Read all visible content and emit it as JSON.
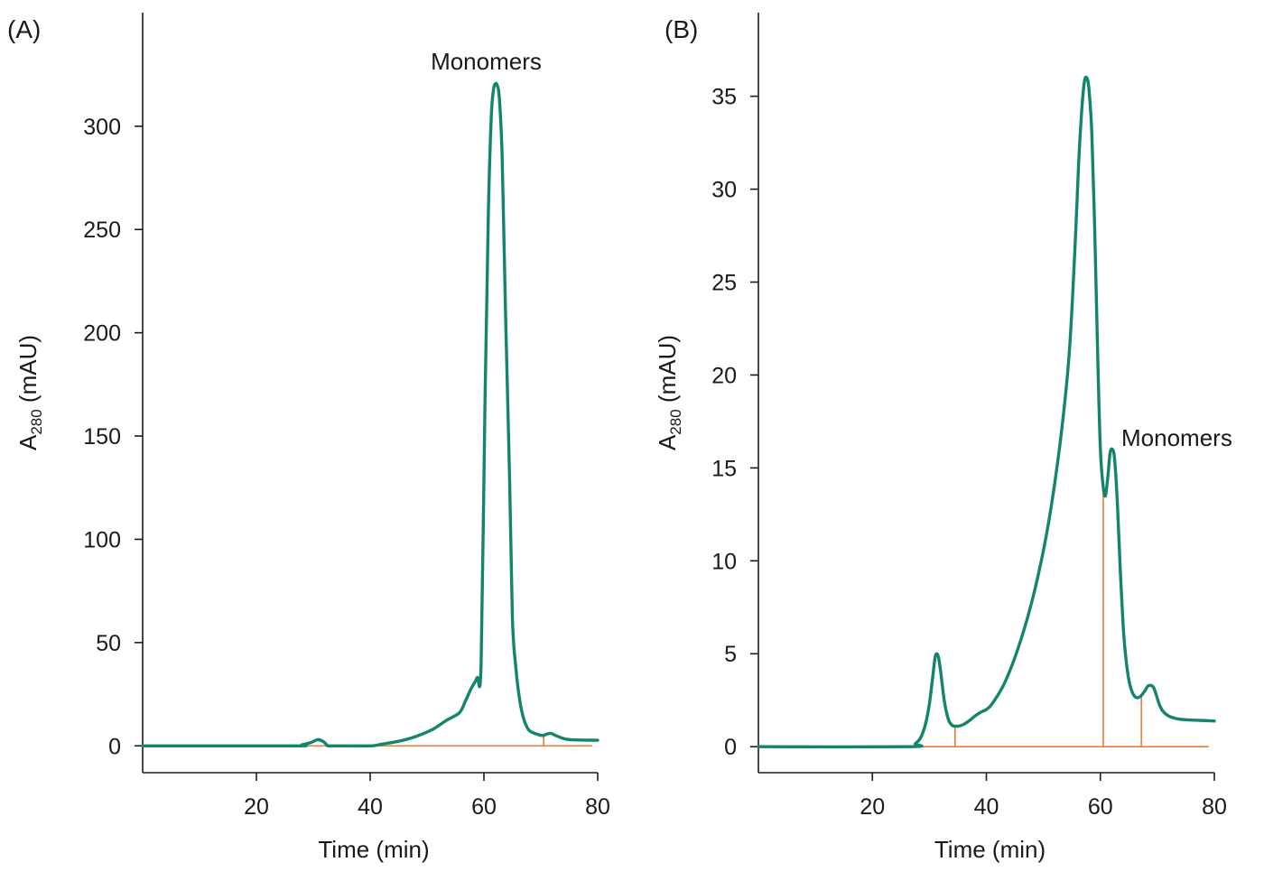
{
  "colors": {
    "trace": "#13856b",
    "baseline": "#ec7a3a",
    "axis": "#1a1a1a"
  },
  "chart_data": [
    {
      "type": "line",
      "panel_label": "(A)",
      "xlabel": "Time (min)",
      "ylabel_main": "A",
      "ylabel_sub": "280",
      "ylabel_unit": " (mAU)",
      "xlim": [
        0,
        80
      ],
      "ylim": [
        -13,
        355
      ],
      "xticks": [
        "20",
        "40",
        "60",
        "80"
      ],
      "xtick_values": [
        20,
        40,
        60,
        80
      ],
      "yticks": [
        "0",
        "50",
        "100",
        "150",
        "200",
        "250",
        "300"
      ],
      "ytick_values": [
        0,
        50,
        100,
        150,
        200,
        250,
        300
      ],
      "series": [
        {
          "name": "A280",
          "x": [
            0,
            26.5,
            28,
            29.5,
            30.8,
            31.8,
            32.5,
            33.2,
            40,
            42,
            45,
            48,
            51,
            53.5,
            55.7,
            56.8,
            57.8,
            58.8,
            59.5,
            60.2,
            60.8,
            61.3,
            61.7,
            62.0,
            62.3,
            62.7,
            63.2,
            63.8,
            64.5,
            65.0,
            65.6,
            66.3,
            67.0,
            67.8,
            68.5,
            69.5,
            70.3,
            71.2,
            71.8,
            72.8,
            74.5,
            77,
            80
          ],
          "y": [
            0,
            0,
            0.5,
            1.5,
            3.0,
            2.0,
            0.2,
            0,
            0,
            0.8,
            2.2,
            4.5,
            8.0,
            12.5,
            16.0,
            22,
            28,
            33,
            40,
            170,
            260,
            305,
            318,
            320.5,
            320,
            314,
            285,
            210,
            130,
            62,
            38,
            22,
            13,
            8.0,
            6.5,
            5.5,
            5.0,
            5.8,
            6.0,
            4.8,
            3.2,
            2.8,
            2.7
          ]
        }
      ],
      "baseline": {
        "from": 27,
        "to": 79
      },
      "markers": [
        {
          "x": 70.5,
          "y": 5.0
        }
      ],
      "annotation": {
        "text": "Monomers",
        "x": 62.3,
        "y": 320.5
      }
    },
    {
      "type": "line",
      "panel_label": "(B)",
      "xlabel": "Time (min)",
      "ylabel_main": "A",
      "ylabel_sub": "280",
      "ylabel_unit": " (mAU)",
      "xlim": [
        0,
        80
      ],
      "ylim": [
        -1.4,
        39.5
      ],
      "xticks": [
        "20",
        "40",
        "60",
        "80"
      ],
      "xtick_values": [
        20,
        40,
        60,
        80
      ],
      "yticks": [
        "0",
        "5",
        "10",
        "15",
        "20",
        "25",
        "30",
        "35"
      ],
      "ytick_values": [
        0,
        5,
        10,
        15,
        20,
        25,
        30,
        35
      ],
      "series": [
        {
          "name": "A280",
          "x": [
            0,
            26.5,
            27.5,
            28.5,
            29.3,
            30.0,
            30.6,
            31.0,
            31.3,
            31.6,
            32.0,
            32.6,
            33.3,
            34.0,
            35.0,
            36.0,
            37.0,
            38.0,
            39.0,
            40.0,
            41.0,
            43.0,
            45.0,
            47.0,
            49.0,
            51.0,
            53.0,
            54.5,
            55.5,
            56.2,
            56.8,
            57.2,
            57.6,
            58.0,
            58.5,
            59.0,
            59.5,
            60.0,
            60.5,
            60.9,
            61.3,
            61.7,
            62.1,
            62.5,
            63.0,
            63.5,
            64.0,
            64.5,
            65.0,
            65.5,
            66.2,
            67.0,
            67.8,
            68.3,
            68.8,
            69.3,
            69.8,
            70.3,
            71.0,
            72.0,
            73.5,
            75.0,
            77.0,
            79.0,
            80.0
          ],
          "y": [
            0,
            0,
            0.15,
            0.5,
            1.2,
            2.3,
            3.8,
            4.8,
            5.0,
            4.8,
            4.0,
            2.5,
            1.5,
            1.15,
            1.1,
            1.2,
            1.4,
            1.65,
            1.85,
            2.0,
            2.3,
            3.3,
            4.8,
            6.7,
            9.1,
            12.2,
            16.5,
            21.0,
            26.5,
            31.5,
            34.5,
            35.8,
            36.0,
            35.4,
            33.0,
            28.0,
            21.5,
            16.0,
            14.0,
            13.5,
            14.5,
            15.8,
            16.0,
            15.5,
            13.0,
            9.5,
            6.5,
            4.7,
            3.6,
            3.0,
            2.65,
            2.7,
            3.0,
            3.25,
            3.3,
            3.2,
            2.8,
            2.3,
            1.9,
            1.65,
            1.5,
            1.45,
            1.42,
            1.4,
            1.38
          ]
        }
      ],
      "baseline": {
        "from": 27,
        "to": 79
      },
      "markers": [
        {
          "x": 34.5,
          "y": 1.1
        },
        {
          "x": 60.5,
          "y": 13.6
        },
        {
          "x": 67.2,
          "y": 2.7
        }
      ],
      "annotation": {
        "text": "Monomers",
        "x": 62.1,
        "y": 16.0
      }
    }
  ]
}
